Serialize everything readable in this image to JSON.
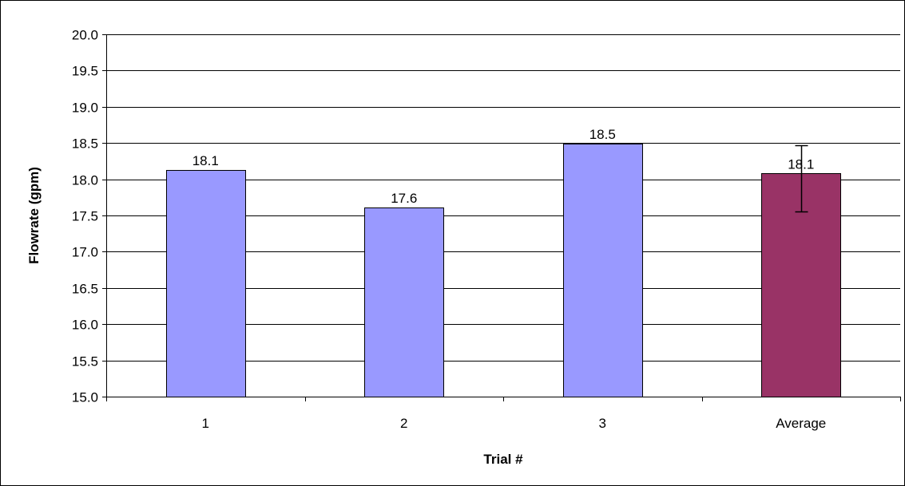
{
  "chart_data": {
    "type": "bar",
    "categories": [
      "1",
      "2",
      "3",
      "Average"
    ],
    "values": [
      18.13,
      17.61,
      18.49,
      18.08
    ],
    "data_labels": [
      "18.1",
      "17.6",
      "18.5",
      "18.1"
    ],
    "error_bars": [
      null,
      null,
      null,
      {
        "low": 17.56,
        "high": 18.47
      }
    ],
    "xlabel": "Trial #",
    "ylabel": "Flowrate (gpm)",
    "ylim": [
      15.0,
      20.0
    ],
    "yticks": [
      15.0,
      15.5,
      16.0,
      16.5,
      17.0,
      17.5,
      18.0,
      18.5,
      19.0,
      19.5,
      20.0
    ],
    "ytick_labels": [
      "15.0",
      "15.5",
      "16.0",
      "16.5",
      "17.0",
      "17.5",
      "18.0",
      "18.5",
      "19.0",
      "19.5",
      "20.0"
    ],
    "grid": true,
    "legend": false,
    "colors": {
      "trial_bar": "#9999ff",
      "average_bar": "#993366",
      "outline": "#000000",
      "gridline": "#000000"
    }
  }
}
